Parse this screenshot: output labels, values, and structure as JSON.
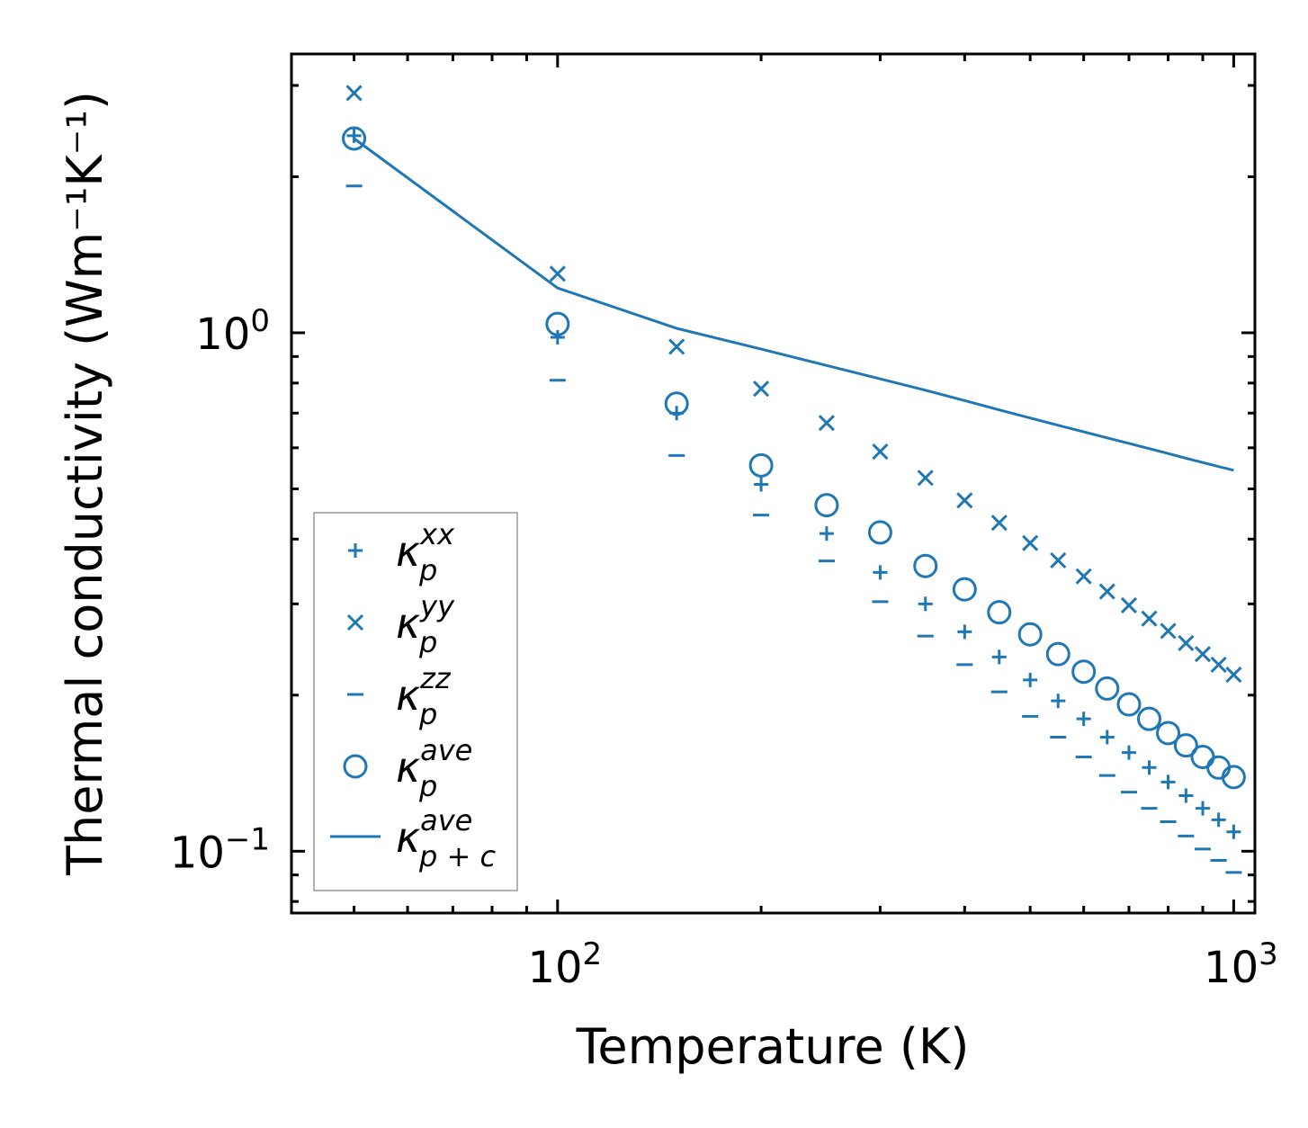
{
  "chart_data": {
    "type": "scatter",
    "xscale": "log",
    "yscale": "log",
    "xlabel": "Temperature (K)",
    "ylabel": "Thermal conductivity (Wm⁻¹K⁻¹)",
    "xlim": [
      40.4,
      1075
    ],
    "ylim": [
      0.076,
      3.45
    ],
    "color": "#1f77b4",
    "x_ticks": [
      {
        "base": "10",
        "exp": "2",
        "value": 100
      },
      {
        "base": "10",
        "exp": "3",
        "value": 1000
      }
    ],
    "y_ticks": [
      {
        "base": "10",
        "exp": "0",
        "value": 1
      },
      {
        "base": "10",
        "exp": "−1",
        "value": 0.1
      }
    ],
    "x": [
      50,
      100,
      150,
      200,
      250,
      300,
      350,
      400,
      450,
      500,
      550,
      600,
      650,
      700,
      750,
      800,
      850,
      900,
      950,
      1000
    ],
    "series": [
      {
        "key": "xx",
        "name": "κ_p^xx",
        "marker": "plus",
        "values": [
          2.4,
          0.98,
          0.7,
          0.51,
          0.41,
          0.345,
          0.3,
          0.265,
          0.237,
          0.214,
          0.195,
          0.18,
          0.166,
          0.155,
          0.145,
          0.136,
          0.128,
          0.121,
          0.115,
          0.109
        ]
      },
      {
        "key": "yy",
        "name": "κ_p^yy",
        "marker": "x",
        "values": [
          2.9,
          1.3,
          0.94,
          0.78,
          0.67,
          0.59,
          0.525,
          0.475,
          0.43,
          0.393,
          0.364,
          0.339,
          0.317,
          0.298,
          0.281,
          0.266,
          0.252,
          0.24,
          0.229,
          0.219
        ]
      },
      {
        "key": "zz",
        "name": "κ_p^zz",
        "marker": "hline",
        "values": [
          1.92,
          0.81,
          0.58,
          0.445,
          0.363,
          0.303,
          0.26,
          0.229,
          0.203,
          0.182,
          0.166,
          0.152,
          0.14,
          0.13,
          0.121,
          0.114,
          0.107,
          0.101,
          0.096,
          0.091
        ]
      },
      {
        "key": "ave",
        "name": "κ_p^ave",
        "marker": "circle",
        "values": [
          2.37,
          1.04,
          0.73,
          0.555,
          0.465,
          0.412,
          0.355,
          0.32,
          0.289,
          0.262,
          0.24,
          0.222,
          0.206,
          0.192,
          0.18,
          0.169,
          0.16,
          0.152,
          0.145,
          0.139
        ]
      },
      {
        "key": "tot",
        "name": "κ_{p+c}^ave",
        "marker": "line",
        "x": [
          50,
          100,
          150,
          200,
          250,
          300,
          350,
          400,
          450,
          500,
          550,
          600,
          650,
          700,
          750,
          800,
          850,
          900,
          950,
          1000
        ],
        "values": [
          2.37,
          1.22,
          1.02,
          0.93,
          0.865,
          0.815,
          0.775,
          0.74,
          0.71,
          0.685,
          0.663,
          0.644,
          0.627,
          0.612,
          0.598,
          0.585,
          0.573,
          0.562,
          0.552,
          0.543
        ]
      }
    ],
    "legend": {
      "position": "lower-left",
      "entries": [
        {
          "sym": "κ",
          "sub": "p",
          "sup": "xx"
        },
        {
          "sym": "κ",
          "sub": "p",
          "sup": "yy"
        },
        {
          "sym": "κ",
          "sub": "p",
          "sup": "zz"
        },
        {
          "sym": "κ",
          "sub": "p",
          "sup": "ave"
        },
        {
          "sym": "κ",
          "sub": "p + c",
          "sup": "ave"
        }
      ]
    }
  }
}
